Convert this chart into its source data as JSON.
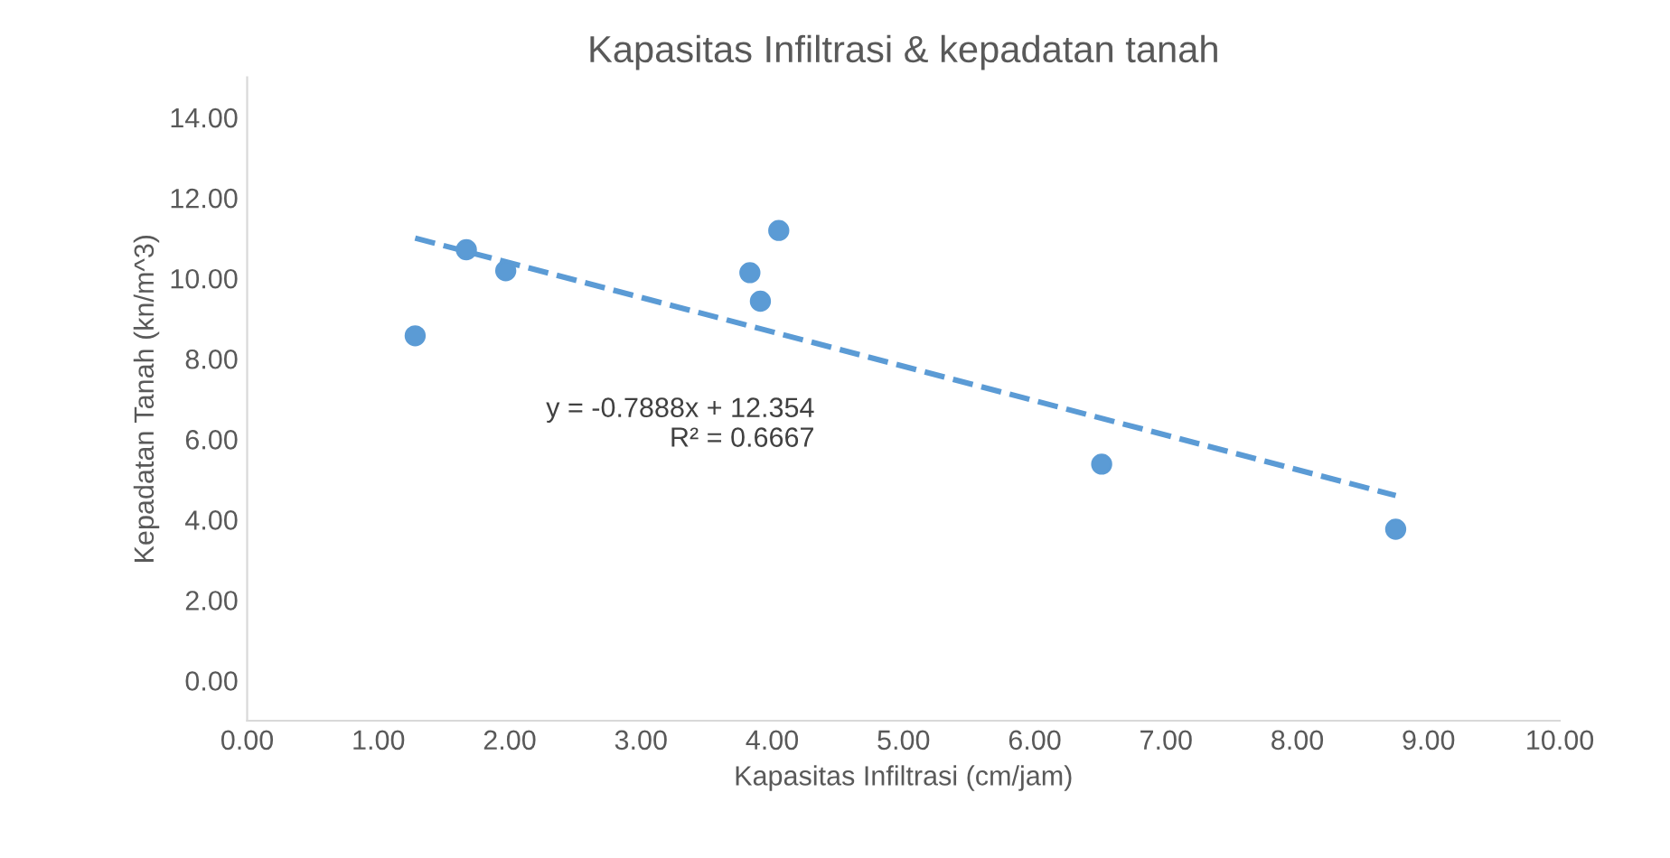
{
  "chart_data": {
    "type": "scatter",
    "title": "Kapasitas Infiltrasi & kepadatan tanah",
    "xlabel": "Kapasitas Infiltrasi (cm/jam)",
    "ylabel": "Kepadatan Tanah (kn/m^3)",
    "xlim": [
      0,
      10
    ],
    "ylim": [
      -1,
      15
    ],
    "xticks": [
      {
        "value": 0,
        "label": "0.00"
      },
      {
        "value": 1,
        "label": "1.00"
      },
      {
        "value": 2,
        "label": "2.00"
      },
      {
        "value": 3,
        "label": "3.00"
      },
      {
        "value": 4,
        "label": "4.00"
      },
      {
        "value": 5,
        "label": "5.00"
      },
      {
        "value": 6,
        "label": "6.00"
      },
      {
        "value": 7,
        "label": "7.00"
      },
      {
        "value": 8,
        "label": "8.00"
      },
      {
        "value": 9,
        "label": "9.00"
      },
      {
        "value": 10,
        "label": "10.00"
      }
    ],
    "yticks": [
      {
        "value": 0,
        "label": "0.00"
      },
      {
        "value": 2,
        "label": "2.00"
      },
      {
        "value": 4,
        "label": "4.00"
      },
      {
        "value": 6,
        "label": "6.00"
      },
      {
        "value": 8,
        "label": "8.00"
      },
      {
        "value": 10,
        "label": "10.00"
      },
      {
        "value": 12,
        "label": "12.00"
      },
      {
        "value": 14,
        "label": "14.00"
      }
    ],
    "grid": false,
    "legend": false,
    "series": [
      {
        "color": "#5b9bd5",
        "marker": "circle",
        "x": [
          1.28,
          1.67,
          1.97,
          3.83,
          3.91,
          4.05,
          6.51,
          8.75
        ],
        "values": [
          8.57,
          10.71,
          10.19,
          10.14,
          9.43,
          11.19,
          5.38,
          3.76
        ]
      },
      {
        "type": "line",
        "color": "#5b9bd5",
        "line_style": "dashed",
        "x": [
          1.28,
          8.75
        ],
        "values": [
          11.0,
          4.6
        ]
      }
    ],
    "annotations": [
      "y = -0.7888x + 12.354\nR² = 0.6667"
    ]
  }
}
